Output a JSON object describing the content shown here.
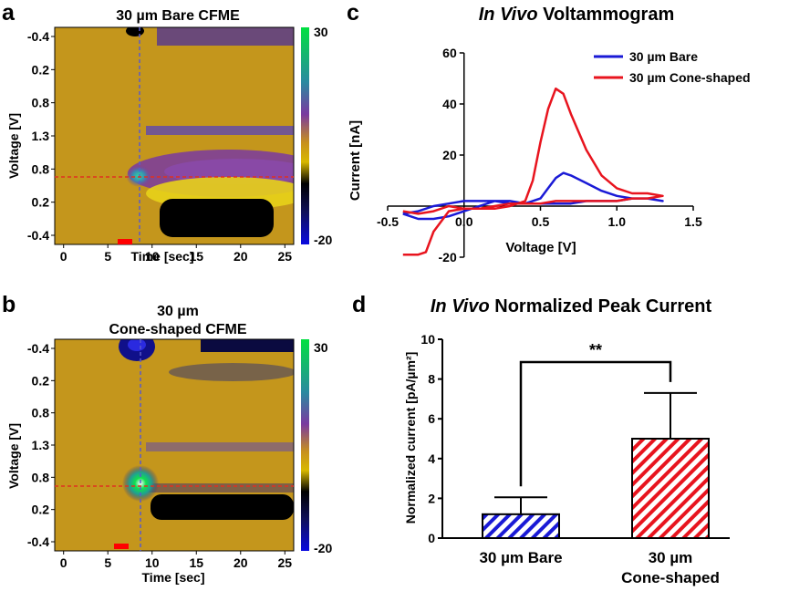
{
  "panels": {
    "a": {
      "letter": "a",
      "title": "30 µm Bare CFME"
    },
    "b": {
      "letter": "b",
      "title_line1": "30 µm",
      "title_line2": "Cone-shaped CFME"
    },
    "c": {
      "letter": "c",
      "title_italic": "In Vivo",
      "title_rest": " Voltammogram"
    },
    "d": {
      "letter": "d",
      "title_italic": "In Vivo",
      "title_rest": " Normalized Peak Current"
    }
  },
  "colors": {
    "bare": "#1a1ad6",
    "cone": "#e8141e",
    "background_plot": "#c99a1e",
    "marker_red": "#ff0000"
  },
  "chart_data": [
    {
      "id": "a",
      "type": "heatmap",
      "title": "30 µm Bare CFME",
      "xlabel": "Time [sec]",
      "ylabel": "Voltage [V]",
      "x_ticks": [
        "0",
        "5",
        "10",
        "15",
        "20",
        "25"
      ],
      "x_range": [
        -1,
        26
      ],
      "y_ticks": [
        "-0.4",
        "0.2",
        "0.8",
        "1.3",
        "0.8",
        "0.2",
        "-0.4"
      ],
      "colorbar": {
        "max_label": "30",
        "min_label": "-20",
        "max": 30,
        "min": -20
      },
      "dashed_time": 9,
      "dashed_voltage_label": "0.6"
    },
    {
      "id": "b",
      "type": "heatmap",
      "title": "30 µm Cone-shaped CFME",
      "xlabel": "Time [sec]",
      "ylabel": "Voltage [V]",
      "x_ticks": [
        "0",
        "5",
        "10",
        "15",
        "20",
        "25"
      ],
      "x_range": [
        -1,
        26
      ],
      "y_ticks": [
        "-0.4",
        "0.2",
        "0.8",
        "1.3",
        "0.8",
        "0.2",
        "-0.4"
      ],
      "colorbar": {
        "max_label": "30",
        "min_label": "-20",
        "max": 30,
        "min": -20
      },
      "dashed_time": 9,
      "dashed_voltage_label": "0.6"
    },
    {
      "id": "c",
      "type": "line",
      "title": "In Vivo Voltammogram",
      "xlabel": "Voltage [V]",
      "ylabel": "Current [nA]",
      "xlim": [
        -0.5,
        1.5
      ],
      "ylim": [
        -20,
        60
      ],
      "x_ticks": [
        "-0.5",
        "0.0",
        "0.5",
        "1.0",
        "1.5"
      ],
      "y_ticks": [
        "-20",
        "20",
        "40",
        "60"
      ],
      "legend_position": "top-right",
      "series": [
        {
          "name": "30 µm Bare",
          "color": "#1a1ad6",
          "x": [
            -0.4,
            -0.3,
            -0.2,
            -0.1,
            0.0,
            0.1,
            0.2,
            0.3,
            0.4,
            0.5,
            0.55,
            0.6,
            0.65,
            0.7,
            0.8,
            0.9,
            1.0,
            1.1,
            1.2,
            1.3,
            1.2,
            1.1,
            1.0,
            0.9,
            0.8,
            0.7,
            0.6,
            0.5,
            0.4,
            0.3,
            0.2,
            0.1,
            0.0,
            -0.1,
            -0.2,
            -0.3,
            -0.4
          ],
          "y": [
            -3,
            -5,
            -5,
            -4,
            -2,
            0,
            2,
            2,
            1,
            3,
            7,
            11,
            13,
            12,
            9,
            6,
            4,
            3,
            3,
            2,
            3,
            3,
            2,
            2,
            2,
            1,
            1,
            1,
            1,
            1,
            2,
            2,
            2,
            1,
            0,
            -2,
            -3
          ]
        },
        {
          "name": "30 µm Cone-shaped",
          "color": "#e8141e",
          "x": [
            -0.4,
            -0.3,
            -0.25,
            -0.2,
            -0.1,
            0.0,
            0.1,
            0.2,
            0.3,
            0.4,
            0.45,
            0.5,
            0.55,
            0.6,
            0.65,
            0.7,
            0.8,
            0.9,
            1.0,
            1.1,
            1.2,
            1.3,
            1.2,
            1.1,
            1.0,
            0.9,
            0.8,
            0.7,
            0.6,
            0.5,
            0.4,
            0.3,
            0.2,
            0.1,
            0.0,
            -0.1,
            -0.2,
            -0.3,
            -0.4
          ],
          "y": [
            -19,
            -19,
            -18,
            -10,
            -2,
            -1,
            -1,
            -1,
            0,
            2,
            10,
            25,
            38,
            46,
            44,
            36,
            22,
            12,
            7,
            5,
            5,
            4,
            3,
            3,
            2,
            2,
            2,
            2,
            2,
            1,
            1,
            1,
            0,
            -1,
            -1,
            0,
            -2,
            -3,
            -2
          ]
        }
      ]
    },
    {
      "id": "d",
      "type": "bar",
      "title": "In Vivo Normalized Peak Current",
      "xlabel": "",
      "ylabel": "Normalized current [pA/µm²]",
      "ylim": [
        0,
        10
      ],
      "y_ticks": [
        "0",
        "2",
        "4",
        "6",
        "8",
        "10"
      ],
      "categories": [
        "30 µm Bare",
        "30 µm Cone-shaped"
      ],
      "category_lines": [
        [
          "30 µm Bare"
        ],
        [
          "30 µm",
          "Cone-shaped"
        ]
      ],
      "values": [
        1.2,
        5.0
      ],
      "errors": [
        0.85,
        2.3
      ],
      "colors": [
        "#1a1ad6",
        "#e8141e"
      ],
      "significance": "**"
    }
  ]
}
